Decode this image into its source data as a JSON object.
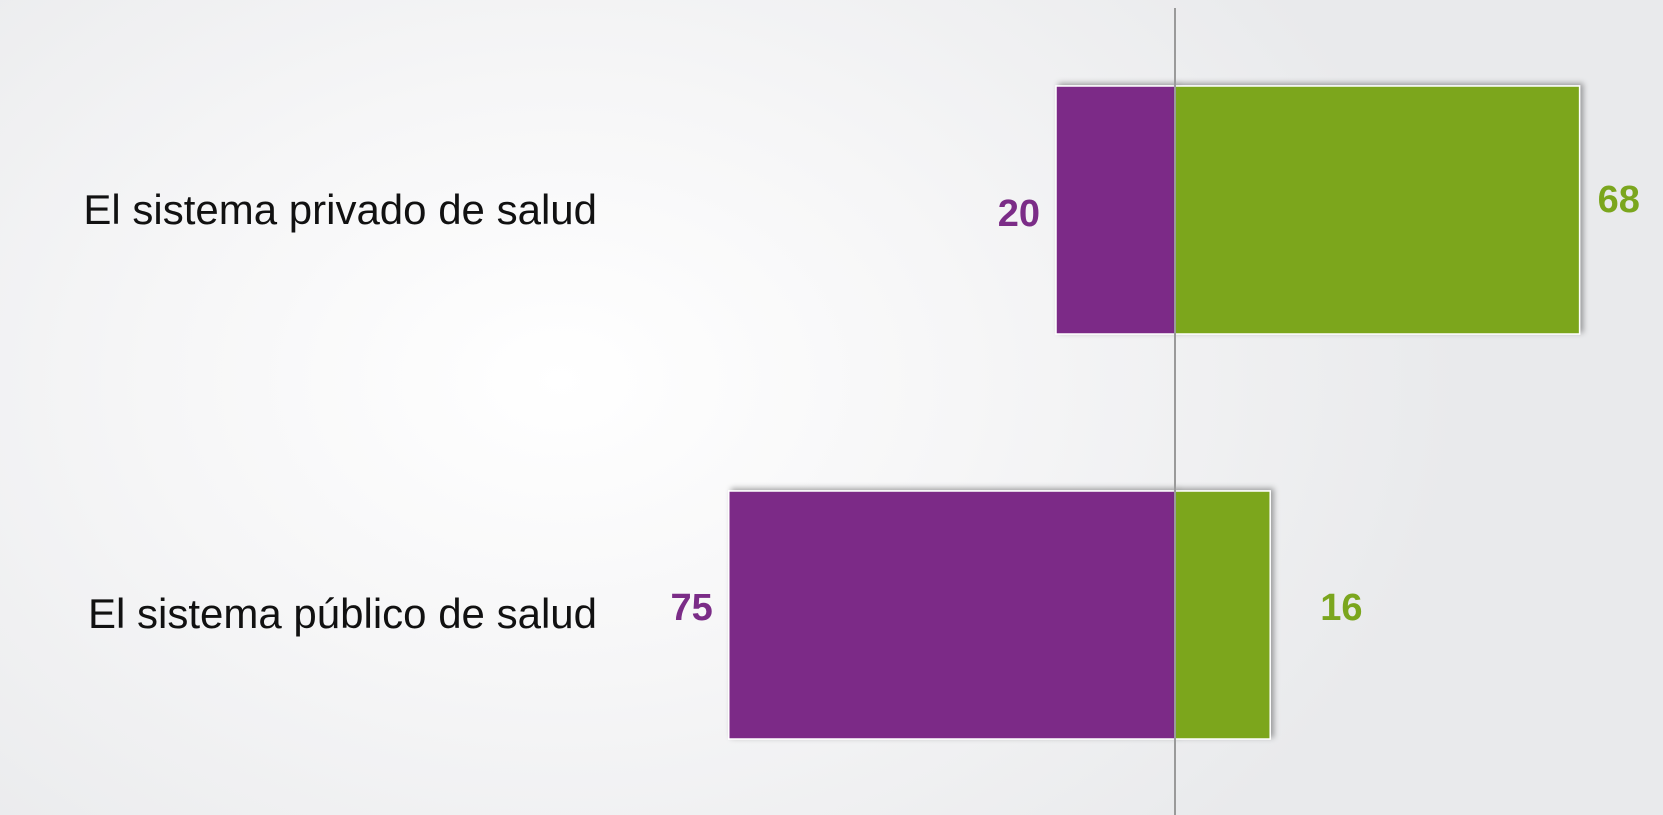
{
  "chart_data": {
    "type": "bar",
    "orientation": "horizontal-diverging",
    "title": "",
    "xlabel": "",
    "ylabel": "",
    "categories": [
      "El sistema privado de salud",
      "El sistema público de salud"
    ],
    "series": [
      {
        "values": [
          20,
          75
        ],
        "color": "#7b2c87",
        "direction": "negative"
      },
      {
        "values": [
          68,
          16
        ],
        "color": "#7ba61e",
        "direction": "positive"
      }
    ],
    "labels": {
      "negative": [
        "20",
        "75"
      ],
      "positive": [
        "68",
        "16"
      ]
    },
    "xlim": [
      -100,
      100
    ],
    "grid": false,
    "legend": "none"
  }
}
